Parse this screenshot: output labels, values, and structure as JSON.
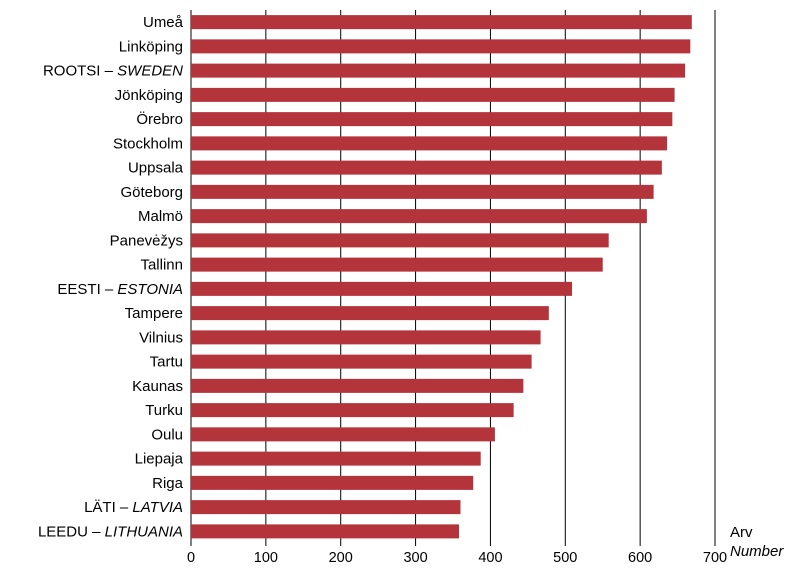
{
  "chart_data": {
    "type": "bar",
    "orientation": "horizontal",
    "categories": [
      {
        "main": "Umeå",
        "en": ""
      },
      {
        "main": "Linköping",
        "en": ""
      },
      {
        "main": "ROOTSI – ",
        "en": "SWEDEN"
      },
      {
        "main": "Jönköping",
        "en": ""
      },
      {
        "main": "Örebro",
        "en": ""
      },
      {
        "main": "Stockholm",
        "en": ""
      },
      {
        "main": "Uppsala",
        "en": ""
      },
      {
        "main": "Göteborg",
        "en": ""
      },
      {
        "main": "Malmö",
        "en": ""
      },
      {
        "main": "Panevėžys",
        "en": ""
      },
      {
        "main": "Tallinn",
        "en": ""
      },
      {
        "main": "EESTI – ",
        "en": "ESTONIA"
      },
      {
        "main": "Tampere",
        "en": ""
      },
      {
        "main": "Vilnius",
        "en": ""
      },
      {
        "main": "Tartu",
        "en": ""
      },
      {
        "main": "Kaunas",
        "en": ""
      },
      {
        "main": "Turku",
        "en": ""
      },
      {
        "main": "Oulu",
        "en": ""
      },
      {
        "main": "Liepaja",
        "en": ""
      },
      {
        "main": "Riga",
        "en": ""
      },
      {
        "main": "LÄTI – ",
        "en": "LATVIA"
      },
      {
        "main": "LEEDU – ",
        "en": "LITHUANIA"
      }
    ],
    "values": [
      669,
      667,
      660,
      646,
      643,
      636,
      629,
      618,
      609,
      558,
      550,
      509,
      478,
      467,
      455,
      444,
      431,
      406,
      387,
      377,
      360,
      358
    ],
    "xlim": [
      0,
      700
    ],
    "xticks": [
      0,
      100,
      200,
      300,
      400,
      500,
      600,
      700
    ],
    "xgrid": true,
    "unit_label": {
      "main": "Arv",
      "en": "Number"
    },
    "bar_color": "#b3343a",
    "grid_color": "#000000"
  }
}
